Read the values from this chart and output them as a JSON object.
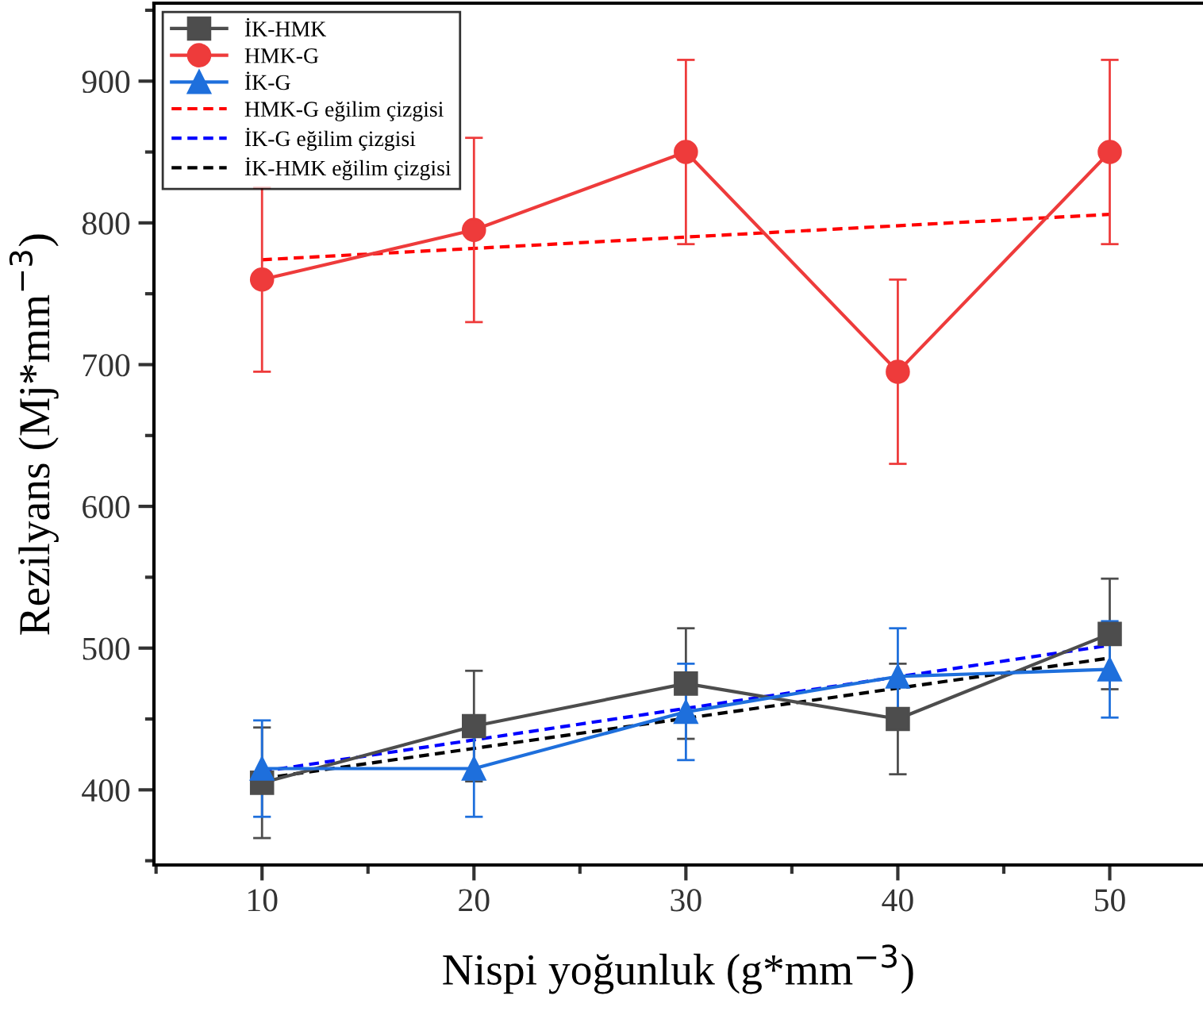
{
  "chart_data": {
    "type": "line",
    "xlabel": "Nispi yoğunluk (g*mm$^{−3}$)",
    "ylabel": "Rezilyans (Mj*mm$^{−3}$)",
    "xlim": [
      4.9,
      54.4
    ],
    "xticks": [
      10,
      20,
      30,
      40,
      50
    ],
    "ylim": [
      347,
      955
    ],
    "yticks": [
      400,
      500,
      600,
      700,
      800,
      900
    ],
    "grid": false,
    "legend": "top left",
    "series": [
      {
        "name": "İK-HMK",
        "color": "#4d4d4d",
        "marker": "square",
        "x": [
          10,
          20,
          30,
          40,
          50
        ],
        "values": [
          405,
          445,
          475,
          450,
          510
        ],
        "errors": [
          39,
          39,
          39,
          39,
          39
        ]
      },
      {
        "name": "HMK-G",
        "color": "#ee3b3b",
        "marker": "circle",
        "x": [
          10,
          20,
          30,
          40,
          50
        ],
        "values": [
          760,
          795,
          850,
          695,
          850
        ],
        "errors": [
          65,
          65,
          65,
          65,
          65
        ]
      },
      {
        "name": "İK-G",
        "color": "#1e6fdc",
        "marker": "triangle",
        "x": [
          10,
          20,
          30,
          40,
          50
        ],
        "values": [
          415,
          415,
          455,
          480,
          485
        ],
        "errors": [
          34,
          34,
          34,
          34,
          34
        ]
      },
      {
        "name": "HMK-G eğilim çizgisi",
        "color": "#ff0000",
        "line_style": "dashed",
        "marker": "none",
        "x": [
          10,
          50
        ],
        "values": [
          774,
          806
        ]
      },
      {
        "name": "İK-G eğilim çizgisi",
        "color": "#0000ff",
        "line_style": "dashed",
        "marker": "none",
        "x": [
          10,
          50
        ],
        "values": [
          413,
          502
        ]
      },
      {
        "name": "İK-HMK eğilim çizgisi",
        "color": "#000000",
        "line_style": "dashed",
        "marker": "none",
        "x": [
          10,
          50
        ],
        "values": [
          408,
          493
        ]
      }
    ]
  }
}
